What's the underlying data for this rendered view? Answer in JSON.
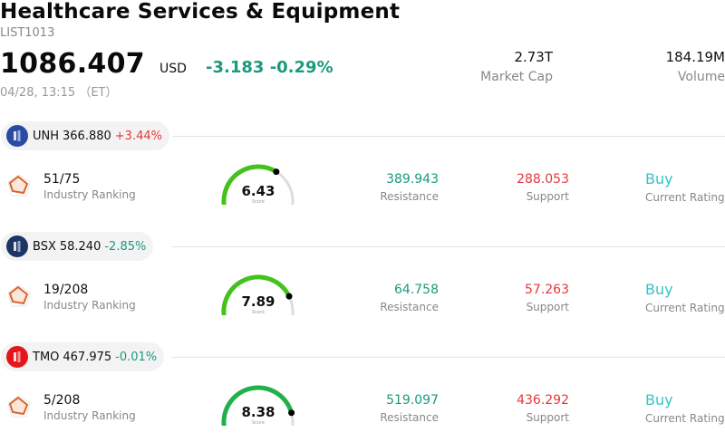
{
  "header": {
    "title": "Healthcare Services & Equipment",
    "code": "LIST1013",
    "price": "1086.407",
    "currency": "USD",
    "change": "-3.183",
    "change_pct": "-0.29%",
    "timestamp": "04/28, 13:15 （ET）"
  },
  "stats": {
    "market_cap": {
      "value": "2.73T",
      "label": "Market Cap"
    },
    "volume": {
      "value": "184.19M",
      "label": "Volume"
    }
  },
  "colors": {
    "positive": "#e5383b",
    "negative": "#1a9a7e",
    "rating": "#35c4c9",
    "gauge_track": "#dcdce6"
  },
  "stocks": [
    {
      "symbol": "UNH",
      "price": "366.880",
      "change": "+3.44%",
      "direction": "up",
      "logo_icon": "unh-logo-icon",
      "logo_color": "#2b4aa6",
      "ranking": "51/75",
      "ranking_label": "Industry Ranking",
      "score": "6.43",
      "score_value": 6.43,
      "score_label": "Score",
      "gauge_color": "#43c21c",
      "resistance": "389.943",
      "resistance_label": "Resistance",
      "support": "288.053",
      "support_label": "Support",
      "rating": "Buy",
      "rating_label": "Current Rating"
    },
    {
      "symbol": "BSX",
      "price": "58.240",
      "change": "-2.85%",
      "direction": "down",
      "logo_icon": "bsx-logo-icon",
      "logo_color": "#1c3566",
      "ranking": "19/208",
      "ranking_label": "Industry Ranking",
      "score": "7.89",
      "score_value": 7.89,
      "score_label": "Score",
      "gauge_color": "#43c21c",
      "resistance": "64.758",
      "resistance_label": "Resistance",
      "support": "57.263",
      "support_label": "Support",
      "rating": "Buy",
      "rating_label": "Current Rating"
    },
    {
      "symbol": "TMO",
      "price": "467.975",
      "change": "-0.01%",
      "direction": "down",
      "logo_icon": "tmo-logo-icon",
      "logo_color": "#e3161b",
      "ranking": "5/208",
      "ranking_label": "Industry Ranking",
      "score": "8.38",
      "score_value": 8.38,
      "score_label": "Score",
      "gauge_color": "#22b04a",
      "resistance": "519.097",
      "resistance_label": "Resistance",
      "support": "436.292",
      "support_label": "Support",
      "rating": "Buy",
      "rating_label": "Current Rating"
    }
  ]
}
